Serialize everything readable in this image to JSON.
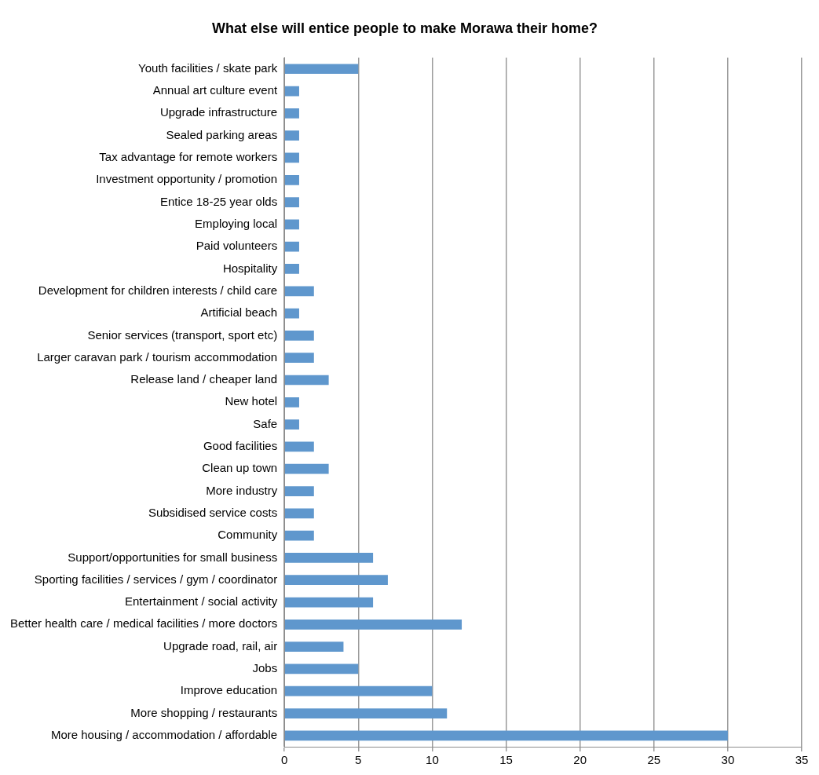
{
  "chart_data": {
    "type": "bar",
    "orientation": "horizontal",
    "title": "What else will entice people to make Morawa their home?",
    "categories": [
      "Youth facilities / skate park",
      "Annual art culture event",
      "Upgrade infrastructure",
      "Sealed parking areas",
      "Tax advantage for remote workers",
      "Investment opportunity / promotion",
      "Entice 18-25 year olds",
      "Employing local",
      "Paid volunteers",
      "Hospitality",
      "Development for children interests / child care",
      "Artificial beach",
      "Senior services (transport, sport etc)",
      "Larger caravan park / tourism accommodation",
      "Release land / cheaper land",
      "New hotel",
      "Safe",
      "Good facilities",
      "Clean up town",
      "More industry",
      "Subsidised service costs",
      "Community",
      "Support/opportunities for small business",
      "Sporting facilities / services / gym / coordinator",
      "Entertainment / social activity",
      "Better health care / medical facilities / more doctors",
      "Upgrade road, rail, air",
      "Jobs",
      "Improve education",
      "More shopping / restaurants",
      "More housing / accommodation / affordable"
    ],
    "values": [
      5,
      1,
      1,
      1,
      1,
      1,
      1,
      1,
      1,
      1,
      2,
      1,
      2,
      2,
      3,
      1,
      1,
      2,
      3,
      2,
      2,
      2,
      6,
      7,
      6,
      12,
      4,
      5,
      10,
      11,
      30
    ],
    "color": "#5f97cd",
    "xlim": [
      0,
      35
    ],
    "xticks": [
      0,
      5,
      10,
      15,
      20,
      25,
      30,
      35
    ],
    "grid": "x",
    "legend": false
  }
}
